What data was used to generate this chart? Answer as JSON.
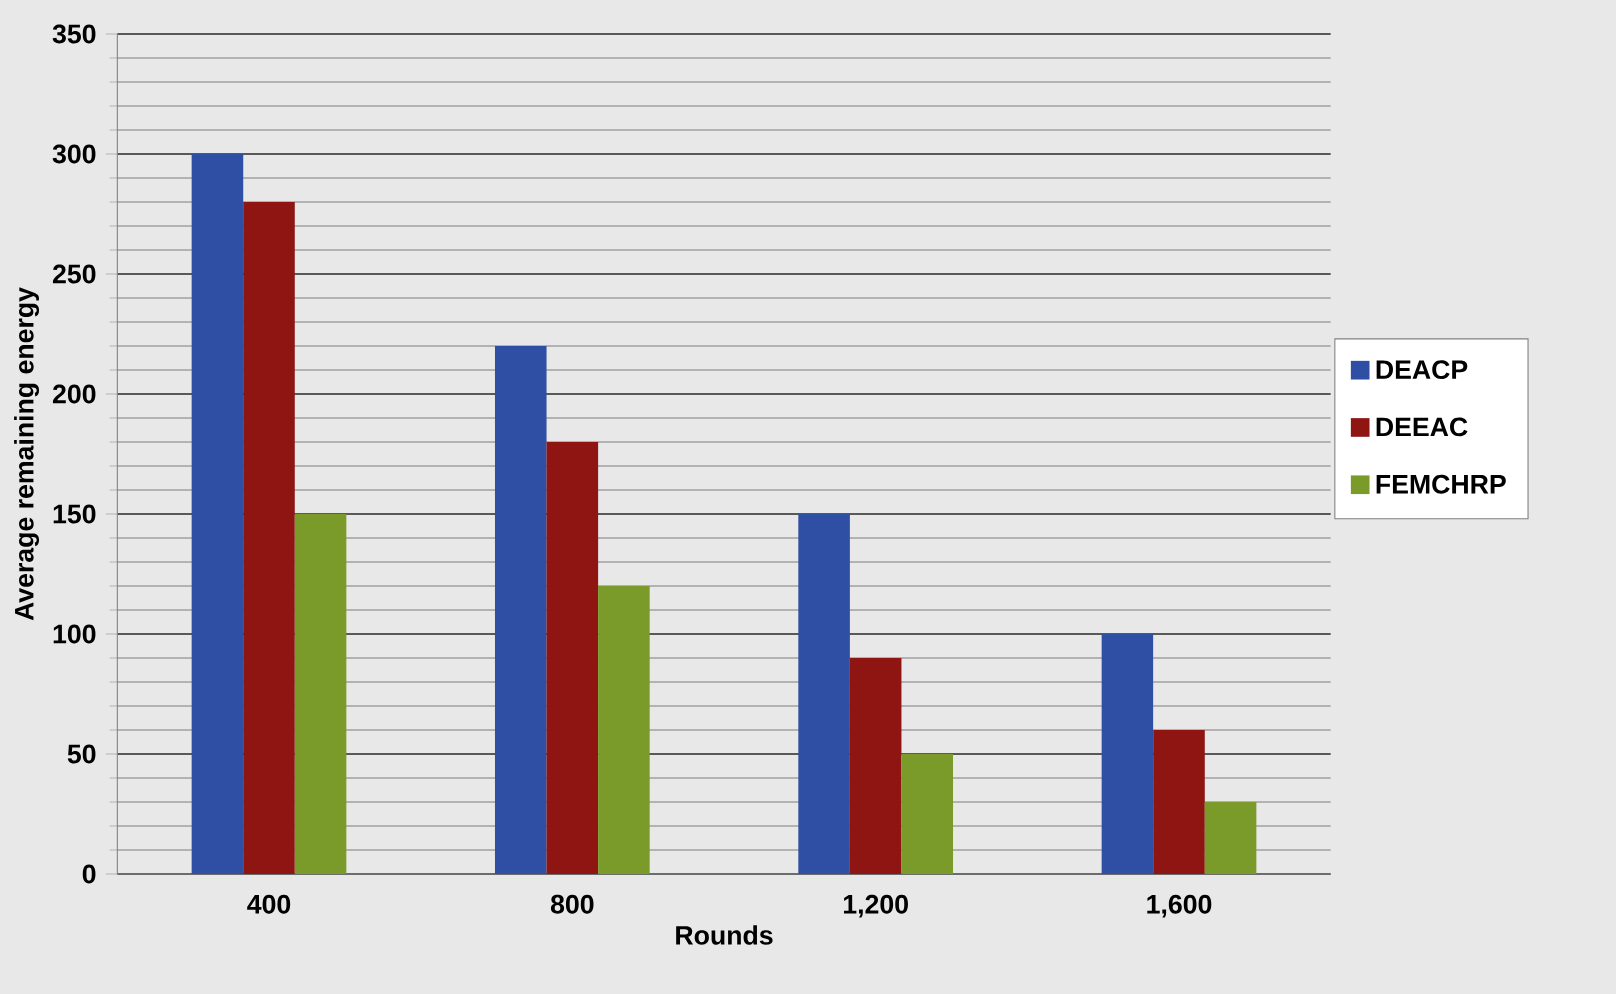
{
  "chart_data": {
    "type": "bar",
    "xlabel": "Rounds",
    "ylabel": "Average remaining energy",
    "categories": [
      "400",
      "800",
      "1,200",
      "1,600"
    ],
    "series": [
      {
        "name": "DEACP",
        "color": "#2e4fa3",
        "values": [
          300,
          220,
          150,
          100
        ]
      },
      {
        "name": "DEEAC",
        "color": "#8e1512",
        "values": [
          280,
          180,
          90,
          60
        ]
      },
      {
        "name": "FEMCHRP",
        "color": "#7a9a2a",
        "values": [
          150,
          120,
          50,
          30
        ]
      }
    ],
    "ylim": [
      0,
      350
    ],
    "yticks": [
      0,
      50,
      100,
      150,
      200,
      250,
      300,
      350
    ],
    "grid": "y",
    "legend": "right"
  }
}
